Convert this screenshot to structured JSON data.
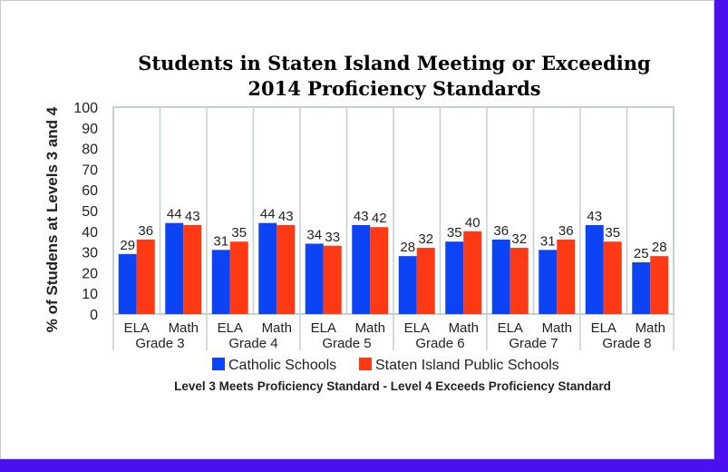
{
  "chart_data": {
    "type": "bar",
    "title": [
      "Students in Staten Island Meeting or Exceeding",
      "2014 Proficiency Standards"
    ],
    "ylabel": "% of Studens at Levels 3 and 4",
    "ylim": [
      0,
      100
    ],
    "yticks": [
      0,
      10,
      20,
      30,
      40,
      50,
      60,
      70,
      80,
      90,
      100
    ],
    "categories": [
      "ELA",
      "Math",
      "ELA",
      "Math",
      "ELA",
      "Math",
      "ELA",
      "Math",
      "ELA",
      "Math",
      "ELA",
      "Math"
    ],
    "groups": [
      "Grade 3",
      "Grade 4",
      "Grade 5",
      "Grade 6",
      "Grade 7",
      "Grade 8"
    ],
    "series": [
      {
        "name": "Catholic Schools",
        "color": "#0c44f5",
        "values": [
          29,
          44,
          31,
          44,
          34,
          43,
          28,
          35,
          36,
          31,
          43,
          25
        ]
      },
      {
        "name": "Staten Island Public Schools",
        "color": "#fd3a14",
        "values": [
          36,
          43,
          35,
          43,
          33,
          42,
          32,
          40,
          32,
          36,
          35,
          28
        ]
      }
    ],
    "legend": "bottom",
    "footnote": "Level 3 Meets Proficiency Standard - Level 4 Exceeds Proficiency Standard"
  }
}
